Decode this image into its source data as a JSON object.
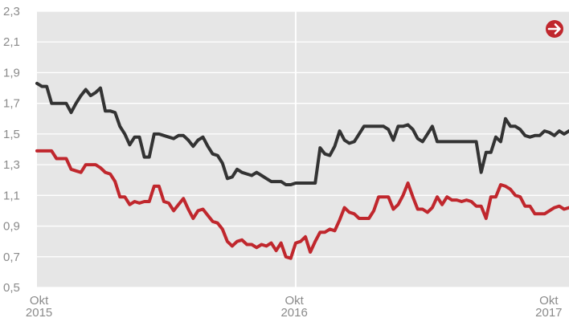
{
  "chart_data": {
    "type": "line",
    "title": "",
    "xlabel": "",
    "ylabel": "",
    "ylim": [
      0.5,
      2.3
    ],
    "y_ticks": [
      "2,3",
      "2,1",
      "1,9",
      "1,7",
      "1,5",
      "1,3",
      "1,1",
      "0,9",
      "0,7",
      "0,5"
    ],
    "y_tick_values": [
      2.3,
      2.1,
      1.9,
      1.7,
      1.5,
      1.3,
      1.1,
      0.9,
      0.7,
      0.5
    ],
    "x_range": [
      "2015-09-28",
      "2017-10-30"
    ],
    "x_ticks": [
      {
        "date": "2015-10-01",
        "line1": "Okt",
        "line2": "2015"
      },
      {
        "date": "2016-10-01",
        "line1": "Okt",
        "line2": "2016"
      },
      {
        "date": "2017-10-01",
        "line1": "Okt",
        "line2": "2017"
      }
    ],
    "grid": true,
    "background_color": "#e6e6e6",
    "grid_color": "#ffffff",
    "series": [
      {
        "color": "#333333",
        "x": [
          "2015-09-28",
          "2015-10-05",
          "2015-10-12",
          "2015-10-19",
          "2015-10-26",
          "2015-11-02",
          "2015-11-09",
          "2015-11-16",
          "2015-11-23",
          "2015-11-30",
          "2015-12-07",
          "2015-12-14",
          "2015-12-21",
          "2015-12-28",
          "2016-01-04",
          "2016-01-11",
          "2016-01-18",
          "2016-01-25",
          "2016-02-01",
          "2016-02-08",
          "2016-02-15",
          "2016-02-22",
          "2016-02-29",
          "2016-03-07",
          "2016-03-14",
          "2016-03-21",
          "2016-03-28",
          "2016-04-04",
          "2016-04-11",
          "2016-04-18",
          "2016-04-25",
          "2016-05-02",
          "2016-05-09",
          "2016-05-16",
          "2016-05-23",
          "2016-05-30",
          "2016-06-06",
          "2016-06-13",
          "2016-06-20",
          "2016-06-27",
          "2016-07-04",
          "2016-07-11",
          "2016-07-18",
          "2016-07-25",
          "2016-08-01",
          "2016-08-08",
          "2016-08-15",
          "2016-08-22",
          "2016-08-29",
          "2016-09-05",
          "2016-09-12",
          "2016-09-19",
          "2016-09-26",
          "2016-10-03",
          "2016-10-10",
          "2016-10-17",
          "2016-10-24",
          "2016-10-31",
          "2016-11-07",
          "2016-11-14",
          "2016-11-21",
          "2016-11-28",
          "2016-12-05",
          "2016-12-12",
          "2016-12-19",
          "2016-12-26",
          "2017-01-02",
          "2017-01-09",
          "2017-01-16",
          "2017-01-23",
          "2017-01-30",
          "2017-02-06",
          "2017-02-13",
          "2017-02-20",
          "2017-02-27",
          "2017-03-06",
          "2017-03-13",
          "2017-03-20",
          "2017-03-27",
          "2017-04-03",
          "2017-04-10",
          "2017-04-17",
          "2017-04-24",
          "2017-05-01",
          "2017-05-08",
          "2017-05-15",
          "2017-05-22",
          "2017-05-29",
          "2017-06-05",
          "2017-06-12",
          "2017-06-19",
          "2017-06-26",
          "2017-07-03",
          "2017-07-10",
          "2017-07-17",
          "2017-07-24",
          "2017-07-31",
          "2017-08-07",
          "2017-08-14",
          "2017-08-21",
          "2017-08-28",
          "2017-09-04",
          "2017-09-11",
          "2017-09-18",
          "2017-09-25",
          "2017-10-02",
          "2017-10-09",
          "2017-10-16",
          "2017-10-23",
          "2017-10-30"
        ],
        "values": [
          1.83,
          1.81,
          1.81,
          1.7,
          1.7,
          1.7,
          1.7,
          1.64,
          1.7,
          1.75,
          1.79,
          1.75,
          1.77,
          1.8,
          1.65,
          1.65,
          1.64,
          1.55,
          1.5,
          1.43,
          1.48,
          1.48,
          1.35,
          1.35,
          1.5,
          1.5,
          1.49,
          1.48,
          1.47,
          1.49,
          1.49,
          1.46,
          1.42,
          1.46,
          1.48,
          1.42,
          1.37,
          1.36,
          1.31,
          1.21,
          1.22,
          1.27,
          1.25,
          1.24,
          1.23,
          1.25,
          1.23,
          1.21,
          1.19,
          1.19,
          1.19,
          1.17,
          1.17,
          1.18,
          1.18,
          1.18,
          1.18,
          1.18,
          1.41,
          1.37,
          1.36,
          1.42,
          1.52,
          1.46,
          1.44,
          1.45,
          1.5,
          1.55,
          1.55,
          1.55,
          1.55,
          1.55,
          1.53,
          1.46,
          1.55,
          1.55,
          1.56,
          1.53,
          1.47,
          1.45,
          1.5,
          1.55,
          1.45,
          1.45,
          1.45,
          1.45,
          1.45,
          1.45,
          1.45,
          1.45,
          1.45,
          1.25,
          1.38,
          1.38,
          1.48,
          1.45,
          1.6,
          1.55,
          1.55,
          1.53,
          1.49,
          1.48,
          1.49,
          1.49,
          1.52,
          1.51,
          1.49,
          1.52,
          1.5,
          1.52
        ]
      },
      {
        "color": "#c0272d",
        "x": [
          "2015-09-28",
          "2015-10-05",
          "2015-10-12",
          "2015-10-19",
          "2015-10-26",
          "2015-11-02",
          "2015-11-09",
          "2015-11-16",
          "2015-11-23",
          "2015-11-30",
          "2015-12-07",
          "2015-12-14",
          "2015-12-21",
          "2015-12-28",
          "2016-01-04",
          "2016-01-11",
          "2016-01-18",
          "2016-01-25",
          "2016-02-01",
          "2016-02-08",
          "2016-02-15",
          "2016-02-22",
          "2016-02-29",
          "2016-03-07",
          "2016-03-14",
          "2016-03-21",
          "2016-03-28",
          "2016-04-04",
          "2016-04-11",
          "2016-04-18",
          "2016-04-25",
          "2016-05-02",
          "2016-05-09",
          "2016-05-16",
          "2016-05-23",
          "2016-05-30",
          "2016-06-06",
          "2016-06-13",
          "2016-06-20",
          "2016-06-27",
          "2016-07-04",
          "2016-07-11",
          "2016-07-18",
          "2016-07-25",
          "2016-08-01",
          "2016-08-08",
          "2016-08-15",
          "2016-08-22",
          "2016-08-29",
          "2016-09-05",
          "2016-09-12",
          "2016-09-19",
          "2016-09-26",
          "2016-10-03",
          "2016-10-10",
          "2016-10-17",
          "2016-10-24",
          "2016-10-31",
          "2016-11-07",
          "2016-11-14",
          "2016-11-21",
          "2016-11-28",
          "2016-12-05",
          "2016-12-12",
          "2016-12-19",
          "2016-12-26",
          "2017-01-02",
          "2017-01-09",
          "2017-01-16",
          "2017-01-23",
          "2017-01-30",
          "2017-02-06",
          "2017-02-13",
          "2017-02-20",
          "2017-02-27",
          "2017-03-06",
          "2017-03-13",
          "2017-03-20",
          "2017-03-27",
          "2017-04-03",
          "2017-04-10",
          "2017-04-17",
          "2017-04-24",
          "2017-05-01",
          "2017-05-08",
          "2017-05-15",
          "2017-05-22",
          "2017-05-29",
          "2017-06-05",
          "2017-06-12",
          "2017-06-19",
          "2017-06-26",
          "2017-07-03",
          "2017-07-10",
          "2017-07-17",
          "2017-07-24",
          "2017-07-31",
          "2017-08-07",
          "2017-08-14",
          "2017-08-21",
          "2017-08-28",
          "2017-09-04",
          "2017-09-11",
          "2017-09-18",
          "2017-09-25",
          "2017-10-02",
          "2017-10-09",
          "2017-10-16",
          "2017-10-23",
          "2017-10-30"
        ],
        "values": [
          1.39,
          1.39,
          1.39,
          1.39,
          1.34,
          1.34,
          1.34,
          1.27,
          1.26,
          1.25,
          1.3,
          1.3,
          1.3,
          1.28,
          1.25,
          1.24,
          1.19,
          1.09,
          1.09,
          1.04,
          1.06,
          1.05,
          1.06,
          1.06,
          1.16,
          1.16,
          1.06,
          1.05,
          1.0,
          1.04,
          1.08,
          1.01,
          0.95,
          1.0,
          1.01,
          0.97,
          0.93,
          0.92,
          0.88,
          0.8,
          0.77,
          0.8,
          0.81,
          0.78,
          0.78,
          0.76,
          0.78,
          0.77,
          0.79,
          0.74,
          0.79,
          0.7,
          0.69,
          0.79,
          0.8,
          0.83,
          0.73,
          0.8,
          0.86,
          0.86,
          0.88,
          0.87,
          0.94,
          1.02,
          0.99,
          0.98,
          0.95,
          0.95,
          0.95,
          1.0,
          1.09,
          1.09,
          1.09,
          1.01,
          1.04,
          1.1,
          1.18,
          1.09,
          1.01,
          1.01,
          0.99,
          1.02,
          1.09,
          1.04,
          1.09,
          1.07,
          1.07,
          1.06,
          1.07,
          1.06,
          1.03,
          1.03,
          0.95,
          1.09,
          1.09,
          1.17,
          1.16,
          1.14,
          1.1,
          1.09,
          1.03,
          1.03,
          0.98,
          0.98,
          0.98,
          1.0,
          1.02,
          1.03,
          1.01,
          1.02
        ]
      }
    ],
    "annotations": [
      {
        "type": "vertical-line",
        "date": "2016-10-03"
      }
    ],
    "arrow_button_icon": "arrow-right-circle-icon",
    "arrow_button_color": "#c0272d"
  }
}
